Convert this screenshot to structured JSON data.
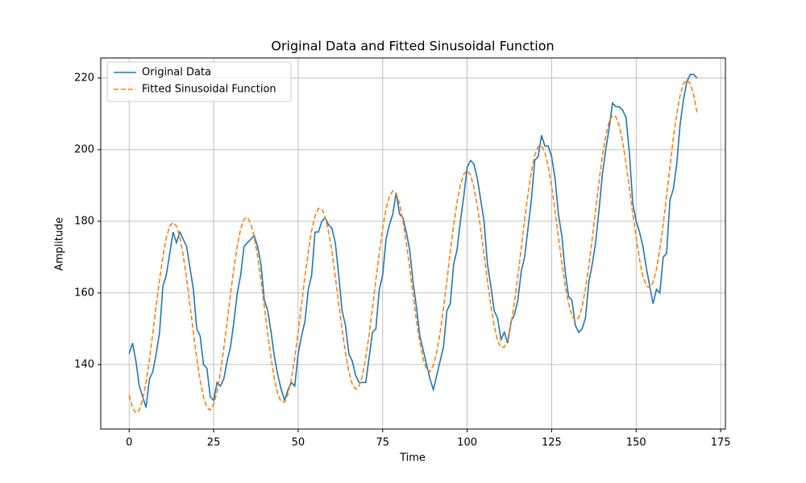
{
  "chart_data": {
    "type": "line",
    "title": "Original Data and Fitted Sinusoidal Function",
    "xlabel": "Time",
    "ylabel": "Amplitude",
    "x": [
      0,
      1,
      2,
      3,
      4,
      5,
      6,
      7,
      8,
      9,
      10,
      11,
      12,
      13,
      14,
      15,
      16,
      17,
      18,
      19,
      20,
      21,
      22,
      23,
      24,
      25,
      26,
      27,
      28,
      29,
      30,
      31,
      32,
      33,
      34,
      35,
      36,
      37,
      38,
      39,
      40,
      41,
      42,
      43,
      44,
      45,
      46,
      47,
      48,
      49,
      50,
      51,
      52,
      53,
      54,
      55,
      56,
      57,
      58,
      59,
      60,
      61,
      62,
      63,
      64,
      65,
      66,
      67,
      68,
      69,
      70,
      71,
      72,
      73,
      74,
      75,
      76,
      77,
      78,
      79,
      80,
      81,
      82,
      83,
      84,
      85,
      86,
      87,
      88,
      89,
      90,
      91,
      92,
      93,
      94,
      95,
      96,
      97,
      98,
      99,
      100,
      101,
      102,
      103,
      104,
      105,
      106,
      107,
      108,
      109,
      110,
      111,
      112,
      113,
      114,
      115,
      116,
      117,
      118,
      119,
      120,
      121,
      122,
      123,
      124,
      125,
      126,
      127,
      128,
      129,
      130,
      131,
      132,
      133,
      134,
      135,
      136,
      137,
      138,
      139,
      140,
      141,
      142,
      143,
      144,
      145,
      146,
      147,
      148,
      149,
      150,
      151,
      152,
      153,
      154,
      155,
      156,
      157,
      158,
      159,
      160,
      161,
      162,
      163,
      164,
      165,
      166,
      167,
      168
    ],
    "series": [
      {
        "name": "Original Data",
        "color": "#1f77b4",
        "linestyle": "solid",
        "values": [
          143,
          146,
          141,
          134,
          131,
          128,
          136,
          138,
          143,
          149,
          162,
          165,
          171,
          177,
          174,
          177,
          175,
          173,
          167,
          161,
          150,
          148,
          140,
          139,
          131,
          130,
          135,
          134,
          136,
          141,
          145,
          152,
          160,
          165,
          173,
          174,
          175,
          176,
          173,
          168,
          158,
          155,
          149,
          142,
          137,
          133,
          130,
          133,
          135,
          134,
          143,
          148,
          152,
          161,
          165,
          177,
          177,
          180,
          181,
          179,
          178,
          174,
          165,
          155,
          151,
          143,
          141,
          137,
          135,
          135,
          135,
          142,
          149,
          150,
          161,
          165,
          175,
          179,
          182,
          188,
          182,
          181,
          177,
          172,
          163,
          156,
          148,
          144,
          140,
          136,
          133,
          137,
          141,
          145,
          155,
          157,
          168,
          172,
          180,
          187,
          195,
          197,
          196,
          192,
          186,
          180,
          168,
          162,
          155,
          153,
          147,
          149,
          146,
          152,
          154,
          158,
          166,
          170,
          178,
          186,
          197,
          198,
          204,
          201,
          201,
          198,
          192,
          182,
          176,
          166,
          159,
          158,
          151,
          149,
          150,
          153,
          163,
          168,
          174,
          183,
          193,
          200,
          206,
          213,
          212,
          212,
          211,
          209,
          199,
          185,
          180,
          177,
          173,
          167,
          162,
          157,
          161,
          160,
          170,
          171,
          186,
          189,
          196,
          207,
          214,
          219,
          221,
          221,
          220
        ]
      },
      {
        "name": "Fitted Sinusoidal Function",
        "color": "#ff7f0e",
        "linestyle": "dashed",
        "values": [
          131.5,
          128.0,
          126.5,
          127.3,
          130.2,
          135.0,
          141.3,
          148.7,
          156.4,
          163.7,
          170.2,
          175.4,
          178.6,
          179.7,
          178.7,
          175.5,
          170.5,
          164.0,
          156.6,
          149.1,
          141.8,
          135.6,
          130.9,
          128.0,
          127.3,
          128.9,
          132.4,
          137.8,
          144.6,
          152.0,
          159.8,
          167.0,
          173.2,
          177.9,
          180.6,
          181.1,
          179.4,
          175.7,
          170.3,
          163.6,
          156.1,
          148.6,
          141.7,
          135.9,
          131.7,
          129.6,
          129.6,
          131.8,
          136.0,
          142.0,
          149.1,
          156.8,
          164.5,
          171.5,
          177.4,
          181.5,
          183.6,
          183.5,
          181.3,
          177.0,
          171.6,
          164.6,
          157.1,
          149.8,
          143.3,
          138.0,
          134.5,
          133.1,
          133.9,
          136.8,
          142.0,
          148.3,
          155.8,
          163.7,
          171.2,
          178.0,
          183.5,
          187.0,
          188.5,
          187.7,
          184.9,
          180.1,
          173.9,
          166.9,
          159.4,
          152.3,
          146.2,
          141.5,
          138.6,
          138.0,
          139.8,
          143.5,
          148.9,
          155.8,
          163.4,
          171.4,
          178.8,
          185.3,
          190.2,
          193.2,
          194.2,
          192.9,
          189.5,
          184.3,
          177.8,
          170.6,
          163.3,
          156.5,
          150.8,
          146.7,
          144.8,
          144.9,
          147.1,
          151.4,
          157.4,
          164.7,
          172.5,
          180.4,
          187.7,
          193.8,
          198.5,
          200.9,
          201.1,
          199.2,
          195.2,
          189.6,
          182.9,
          175.6,
          168.5,
          162.0,
          157.1,
          153.6,
          152.3,
          153.1,
          156.1,
          161.1,
          167.5,
          175.1,
          183.1,
          191.0,
          198.3,
          203.9,
          207.8,
          209.6,
          209.2,
          206.6,
          202.2,
          196.2,
          189.3,
          182.1,
          175.4,
          169.3,
          164.7,
          162.0,
          161.4,
          163.0,
          166.6,
          172.1,
          179.1,
          187.0,
          195.4,
          203.2,
          209.9,
          215.1,
          218.4,
          219.5,
          218.5,
          215.3,
          210.4
        ]
      }
    ],
    "xlim": [
      -8.4,
      176.4
    ],
    "xticks": [
      0,
      25,
      50,
      75,
      100,
      125,
      150,
      175
    ],
    "ylim": [
      122,
      225.6
    ],
    "yticks": [
      140,
      160,
      180,
      200,
      220
    ],
    "grid": true,
    "legend": "upper left"
  }
}
